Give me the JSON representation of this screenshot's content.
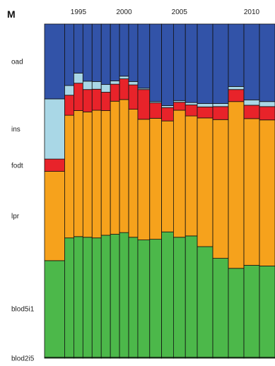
{
  "panel_letter": "M",
  "chart_data": {
    "type": "bar",
    "stacked": true,
    "normalized_to": 1,
    "title": "",
    "xlabel": "",
    "ylabel": "",
    "ylim": [
      0,
      1
    ],
    "x_tick_labels": [
      {
        "label": "1995",
        "year": 1995
      },
      {
        "label": "2000",
        "year": 2000
      },
      {
        "label": "2005",
        "year": 2005
      },
      {
        "label": "2010",
        "year": 2010
      }
    ],
    "y_labels": [
      "oad",
      "ins",
      "fodt",
      "lpr",
      "blod5i1",
      "blod2i5"
    ],
    "categories": [
      "1993",
      "1994",
      "1995",
      "1996",
      "1997",
      "1998",
      "1999",
      "2000",
      "2001",
      "2002",
      "2003",
      "2004",
      "2005",
      "2006",
      "2007",
      "2008",
      "2009",
      "2010",
      "2011"
    ],
    "widths": [
      2.2,
      1,
      1,
      1,
      1,
      1,
      1,
      1,
      1,
      1.3,
      1.3,
      1.3,
      1.3,
      1.3,
      1.7,
      1.7,
      1.7,
      1.7,
      1.7
    ],
    "series": [
      {
        "name": "blod2i5",
        "color": "#1f6b1f",
        "values": [
          0.003,
          0.003,
          0.003,
          0.003,
          0.003,
          0.003,
          0.003,
          0.003,
          0.003,
          0.003,
          0.003,
          0.003,
          0.003,
          0.003,
          0.003,
          0.003,
          0.003,
          0.003,
          0.003
        ]
      },
      {
        "name": "blod5i1",
        "color": "#4cb84a",
        "values": [
          0.289,
          0.357,
          0.361,
          0.359,
          0.357,
          0.365,
          0.368,
          0.373,
          0.359,
          0.351,
          0.353,
          0.375,
          0.359,
          0.363,
          0.331,
          0.296,
          0.266,
          0.275,
          0.273
        ]
      },
      {
        "name": "lpr",
        "color": "#f6a21c",
        "values": [
          0.267,
          0.367,
          0.377,
          0.375,
          0.382,
          0.373,
          0.398,
          0.398,
          0.383,
          0.361,
          0.362,
          0.332,
          0.38,
          0.359,
          0.385,
          0.415,
          0.499,
          0.439,
          0.437
        ]
      },
      {
        "name": "fodt",
        "color": "#e8232a",
        "values": [
          0.037,
          0.06,
          0.082,
          0.067,
          0.063,
          0.055,
          0.051,
          0.062,
          0.073,
          0.089,
          0.046,
          0.04,
          0.024,
          0.033,
          0.033,
          0.039,
          0.036,
          0.04,
          0.04
        ]
      },
      {
        "name": "ins",
        "color": "#a9d7e6",
        "values": [
          0.18,
          0.029,
          0.03,
          0.025,
          0.023,
          0.023,
          0.01,
          0.008,
          0.01,
          0.004,
          0.004,
          0.006,
          0.005,
          0.007,
          0.01,
          0.009,
          0.009,
          0.016,
          0.015
        ]
      },
      {
        "name": "oad",
        "color": "#3253a8",
        "values": [
          0.224,
          0.184,
          0.147,
          0.171,
          0.172,
          0.181,
          0.17,
          0.156,
          0.172,
          0.192,
          0.232,
          0.244,
          0.229,
          0.235,
          0.238,
          0.238,
          0.187,
          0.227,
          0.232
        ]
      }
    ]
  }
}
